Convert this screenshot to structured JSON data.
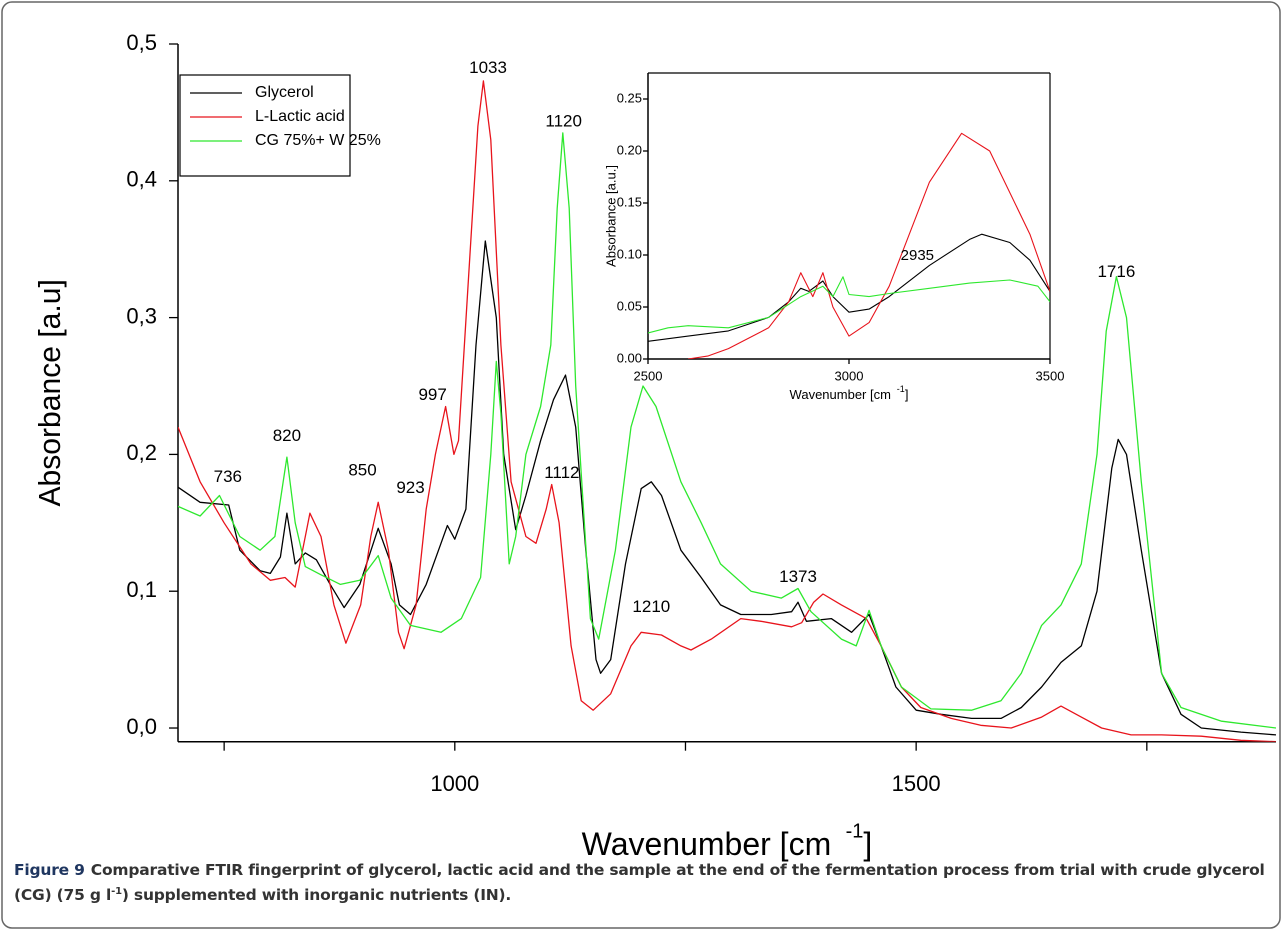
{
  "chart_data": [
    {
      "type": "line",
      "xlabel": "Wavenumber [cm",
      "xlabel_sup": "-1",
      "xlabel_end": "]",
      "ylabel": "Absorbance [a.u]",
      "xlim": [
        700,
        1890
      ],
      "ylim": [
        -0.01,
        0.5
      ],
      "xticks": [
        1000,
        1500
      ],
      "xminor_ticks": [
        750,
        1250,
        1750
      ],
      "yticks": [
        {
          "value": 0,
          "label": "0,0"
        },
        {
          "value": 0.1,
          "label": "0,1"
        },
        {
          "value": 0.2,
          "label": "0,2"
        },
        {
          "value": 0.3,
          "label": "0,3"
        },
        {
          "value": 0.4,
          "label": "0,4"
        },
        {
          "value": 0.5,
          "label": "0,5"
        }
      ],
      "legend": "upper left",
      "series": [
        {
          "name": "Glycerol",
          "color": "#000000",
          "x": [
            700,
            724,
            755,
            767,
            789,
            800,
            811,
            818,
            827,
            838,
            850,
            865,
            880,
            897,
            917,
            931,
            940,
            952,
            969,
            985,
            992,
            1000,
            1012,
            1023,
            1033,
            1045,
            1053,
            1066,
            1077,
            1093,
            1107,
            1120,
            1131,
            1142,
            1153,
            1158,
            1169,
            1185,
            1202,
            1213,
            1224,
            1245,
            1267,
            1288,
            1310,
            1343,
            1365,
            1372,
            1381,
            1408,
            1430,
            1449,
            1462,
            1478,
            1500,
            1527,
            1560,
            1592,
            1614,
            1636,
            1657,
            1679,
            1696,
            1712,
            1719,
            1728,
            1744,
            1766,
            1787,
            1809,
            1852,
            1890
          ],
          "values": [
            0.176,
            0.165,
            0.163,
            0.13,
            0.115,
            0.113,
            0.125,
            0.157,
            0.12,
            0.128,
            0.123,
            0.105,
            0.088,
            0.105,
            0.146,
            0.12,
            0.09,
            0.083,
            0.105,
            0.135,
            0.148,
            0.138,
            0.16,
            0.28,
            0.356,
            0.3,
            0.2,
            0.145,
            0.17,
            0.21,
            0.24,
            0.258,
            0.22,
            0.13,
            0.05,
            0.04,
            0.05,
            0.12,
            0.175,
            0.18,
            0.17,
            0.13,
            0.11,
            0.09,
            0.083,
            0.083,
            0.085,
            0.092,
            0.078,
            0.08,
            0.07,
            0.083,
            0.06,
            0.03,
            0.013,
            0.01,
            0.007,
            0.007,
            0.015,
            0.03,
            0.048,
            0.06,
            0.1,
            0.19,
            0.211,
            0.2,
            0.13,
            0.04,
            0.01,
            0.0,
            -0.003,
            -0.005
          ]
        },
        {
          "name": "L-Lactic acid",
          "color": "#e8141c",
          "x": [
            700,
            724,
            750,
            779,
            800,
            816,
            827,
            838,
            843,
            855,
            869,
            882,
            898,
            909,
            917,
            928,
            939,
            945,
            958,
            969,
            979,
            990,
            999,
            1004,
            1015,
            1025,
            1031,
            1039,
            1050,
            1061,
            1077,
            1088,
            1099,
            1105,
            1113,
            1126,
            1137,
            1150,
            1169,
            1191,
            1202,
            1224,
            1245,
            1256,
            1278,
            1310,
            1332,
            1365,
            1376,
            1389,
            1399,
            1419,
            1446,
            1462,
            1484,
            1505,
            1538,
            1570,
            1603,
            1636,
            1657,
            1679,
            1701,
            1733,
            1766,
            1809,
            1852,
            1890
          ],
          "values": [
            0.22,
            0.18,
            0.15,
            0.12,
            0.108,
            0.11,
            0.103,
            0.14,
            0.157,
            0.14,
            0.09,
            0.062,
            0.09,
            0.14,
            0.165,
            0.13,
            0.07,
            0.058,
            0.09,
            0.16,
            0.2,
            0.235,
            0.2,
            0.21,
            0.33,
            0.44,
            0.473,
            0.43,
            0.28,
            0.18,
            0.14,
            0.135,
            0.16,
            0.178,
            0.15,
            0.06,
            0.02,
            0.013,
            0.025,
            0.06,
            0.07,
            0.068,
            0.06,
            0.057,
            0.065,
            0.08,
            0.078,
            0.074,
            0.077,
            0.092,
            0.098,
            0.09,
            0.08,
            0.06,
            0.03,
            0.015,
            0.007,
            0.002,
            0.0,
            0.008,
            0.016,
            0.008,
            0.0,
            -0.005,
            -0.005,
            -0.006,
            -0.009,
            -0.01
          ]
        },
        {
          "name": "CG 75%+ W 25%",
          "color": "#2ee82e",
          "x": [
            700,
            724,
            745,
            767,
            789,
            805,
            818,
            827,
            838,
            855,
            876,
            897,
            917,
            931,
            952,
            985,
            1007,
            1028,
            1039,
            1045,
            1050,
            1059,
            1066,
            1077,
            1093,
            1104,
            1111,
            1117,
            1124,
            1131,
            1147,
            1156,
            1174,
            1191,
            1204,
            1218,
            1245,
            1267,
            1288,
            1321,
            1354,
            1372,
            1386,
            1419,
            1435,
            1449,
            1462,
            1484,
            1516,
            1560,
            1592,
            1614,
            1636,
            1657,
            1679,
            1696,
            1706,
            1717,
            1728,
            1744,
            1766,
            1787,
            1831,
            1890
          ],
          "values": [
            0.162,
            0.155,
            0.17,
            0.14,
            0.13,
            0.14,
            0.198,
            0.15,
            0.118,
            0.112,
            0.105,
            0.108,
            0.126,
            0.095,
            0.075,
            0.07,
            0.08,
            0.11,
            0.2,
            0.268,
            0.23,
            0.12,
            0.14,
            0.2,
            0.235,
            0.28,
            0.38,
            0.435,
            0.38,
            0.25,
            0.08,
            0.065,
            0.13,
            0.22,
            0.25,
            0.235,
            0.18,
            0.15,
            0.12,
            0.1,
            0.095,
            0.102,
            0.085,
            0.065,
            0.06,
            0.086,
            0.06,
            0.03,
            0.014,
            0.013,
            0.02,
            0.04,
            0.075,
            0.09,
            0.12,
            0.2,
            0.29,
            0.33,
            0.3,
            0.18,
            0.04,
            0.015,
            0.005,
            0.0
          ]
        }
      ],
      "annotations": [
        {
          "text": "736",
          "x": 754,
          "y": 0.183
        },
        {
          "text": "820",
          "x": 818,
          "y": 0.213
        },
        {
          "text": "850",
          "x": 900,
          "y": 0.188
        },
        {
          "text": "923",
          "x": 952,
          "y": 0.175
        },
        {
          "text": "997",
          "x": 976,
          "y": 0.243
        },
        {
          "text": "1033",
          "x": 1036,
          "y": 0.482
        },
        {
          "text": "1120",
          "x": 1118,
          "y": 0.443
        },
        {
          "text": "1112",
          "x": 1116,
          "y": 0.186
        },
        {
          "text": "1210",
          "x": 1213,
          "y": 0.088
        },
        {
          "text": "1373",
          "x": 1372,
          "y": 0.11
        },
        {
          "text": "1716",
          "x": 1717,
          "y": 0.333
        }
      ]
    },
    {
      "type": "line",
      "xlabel": "Wavenumber [cm",
      "xlabel_sup": "-1",
      "xlabel_end": "]",
      "ylabel": "Absorbance [a.u.]",
      "xlim": [
        2500,
        3500
      ],
      "ylim": [
        0,
        0.275
      ],
      "xticks": [
        2500,
        3000,
        3500
      ],
      "yticks": [
        {
          "value": 0,
          "label": "0.00"
        },
        {
          "value": 0.05,
          "label": "0.05"
        },
        {
          "value": 0.1,
          "label": "0.10"
        },
        {
          "value": 0.15,
          "label": "0.15"
        },
        {
          "value": 0.2,
          "label": "0.20"
        },
        {
          "value": 0.25,
          "label": "0.25"
        }
      ],
      "series": [
        {
          "color": "#000000",
          "x": [
            2500,
            2600,
            2700,
            2800,
            2850,
            2880,
            2900,
            2935,
            2960,
            3000,
            3050,
            3100,
            3200,
            3300,
            3330,
            3400,
            3450,
            3500
          ],
          "values": [
            0.017,
            0.022,
            0.027,
            0.04,
            0.055,
            0.068,
            0.065,
            0.075,
            0.06,
            0.045,
            0.048,
            0.06,
            0.09,
            0.115,
            0.12,
            0.112,
            0.095,
            0.065
          ]
        },
        {
          "color": "#e8141c",
          "x": [
            2600,
            2650,
            2700,
            2800,
            2850,
            2880,
            2910,
            2935,
            2960,
            3000,
            3050,
            3100,
            3200,
            3280,
            3350,
            3450,
            3500
          ],
          "values": [
            0,
            0.003,
            0.01,
            0.03,
            0.055,
            0.083,
            0.06,
            0.083,
            0.05,
            0.022,
            0.035,
            0.07,
            0.17,
            0.217,
            0.2,
            0.12,
            0.065
          ]
        },
        {
          "color": "#2ee82e",
          "x": [
            2500,
            2550,
            2600,
            2700,
            2800,
            2880,
            2935,
            2960,
            2985,
            3000,
            3050,
            3100,
            3200,
            3300,
            3400,
            3470,
            3500
          ],
          "values": [
            0.025,
            0.03,
            0.032,
            0.03,
            0.04,
            0.06,
            0.07,
            0.06,
            0.079,
            0.062,
            0.06,
            0.063,
            0.068,
            0.073,
            0.076,
            0.07,
            0.055
          ]
        }
      ],
      "annotations": [
        {
          "text": "2935",
          "x": 3170,
          "y": 0.099
        }
      ]
    }
  ],
  "caption": {
    "label": "Figure 9",
    "text": "Comparative FTIR fingerprint of glycerol, lactic acid and the sample at the end of the fermentation process from trial with crude glycerol (CG) (75 g l",
    "sup": "-1",
    "text_end": ") supplemented with inorganic nutrients (IN)."
  }
}
